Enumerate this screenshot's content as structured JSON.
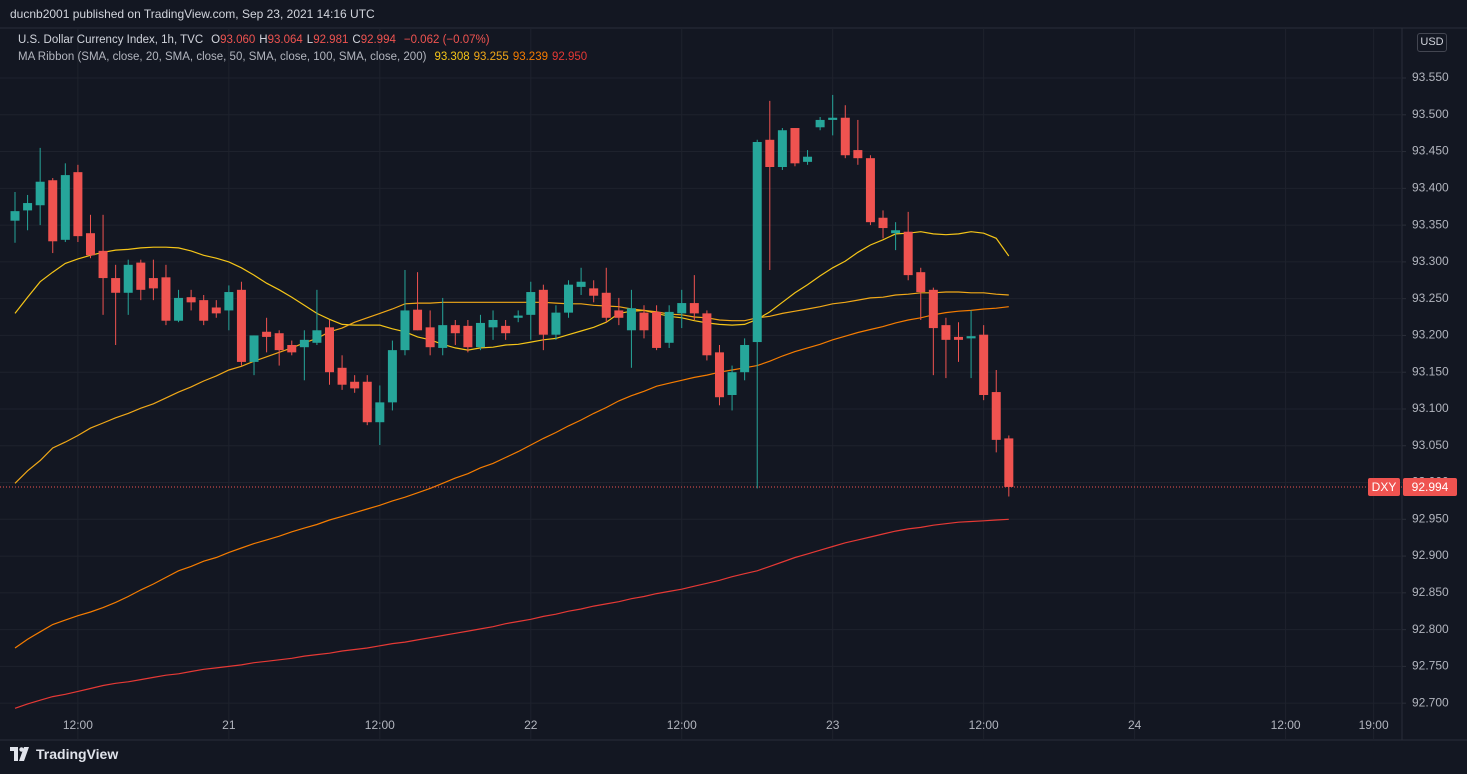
{
  "header": {
    "text": "ducnb2001 published on TradingView.com, Sep 23, 2021 14:16 UTC"
  },
  "footer": {
    "brand": "TradingView"
  },
  "chart_data": {
    "type": "candlestick",
    "title": "U.S. Dollar Currency Index, 1h, TVC",
    "ohlc_legend": [
      {
        "key": "O",
        "value": "93.060"
      },
      {
        "key": "H",
        "value": "93.064"
      },
      {
        "key": "L",
        "value": "92.981"
      },
      {
        "key": "C",
        "value": "92.994"
      }
    ],
    "change": "−0.062 (−0.07%)",
    "currency": "USD",
    "symbol": "DXY",
    "last_label": "92.994",
    "up_color": "#26a69a",
    "down_color": "#ef5350",
    "grid": true,
    "ylim": [
      92.688,
      93.618
    ],
    "yticks": [
      {
        "value": 92.7,
        "label": "92.700"
      },
      {
        "value": 92.75,
        "label": "92.750"
      },
      {
        "value": 92.8,
        "label": "92.800"
      },
      {
        "value": 92.85,
        "label": "92.850"
      },
      {
        "value": 92.9,
        "label": "92.900"
      },
      {
        "value": 92.95,
        "label": "92.950"
      },
      {
        "value": 93.0,
        "label": "93.000"
      },
      {
        "value": 93.05,
        "label": "93.050"
      },
      {
        "value": 93.1,
        "label": "93.100"
      },
      {
        "value": 93.15,
        "label": "93.150"
      },
      {
        "value": 93.2,
        "label": "93.200"
      },
      {
        "value": 93.25,
        "label": "93.250"
      },
      {
        "value": 93.3,
        "label": "93.300"
      },
      {
        "value": 93.35,
        "label": "93.350"
      },
      {
        "value": 93.4,
        "label": "93.400"
      },
      {
        "value": 93.45,
        "label": "93.450"
      },
      {
        "value": 93.5,
        "label": "93.500"
      },
      {
        "value": 93.55,
        "label": "93.550"
      }
    ],
    "x_tick_labels": [
      "12:00",
      "21",
      "12:00",
      "22",
      "12:00",
      "23",
      "12:00",
      "24",
      "12:00",
      "19:00"
    ],
    "open": [
      93.356,
      93.37,
      93.377,
      93.411,
      93.33,
      93.422,
      93.339,
      93.315,
      93.278,
      93.258,
      93.299,
      93.278,
      93.279,
      93.22,
      93.252,
      93.248,
      93.238,
      93.234,
      93.262,
      93.164,
      93.205,
      93.203,
      93.187,
      93.184,
      93.19,
      93.211,
      93.156,
      93.137,
      93.137,
      93.082,
      93.109,
      93.18,
      93.235,
      93.211,
      93.183,
      93.214,
      93.213,
      93.184,
      93.211,
      93.213,
      93.224,
      93.228,
      93.262,
      93.201,
      93.231,
      93.266,
      93.264,
      93.258,
      93.234,
      93.207,
      93.231,
      93.232,
      93.19,
      93.23,
      93.244,
      93.23,
      93.177,
      93.119,
      93.15,
      93.191,
      93.466,
      93.429,
      93.482,
      93.436,
      93.483,
      93.493,
      93.496,
      93.452,
      93.441,
      93.36,
      93.339,
      93.341,
      93.286,
      93.262,
      93.214,
      93.198,
      93.196,
      93.201,
      93.123,
      93.06
    ],
    "high": [
      93.395,
      93.391,
      93.455,
      93.414,
      93.434,
      93.432,
      93.364,
      93.364,
      93.296,
      93.303,
      93.303,
      93.303,
      93.296,
      93.262,
      93.262,
      93.255,
      93.248,
      93.268,
      93.273,
      93.2,
      93.224,
      93.207,
      93.193,
      93.207,
      93.262,
      93.221,
      93.173,
      93.146,
      93.146,
      93.132,
      93.193,
      93.289,
      93.286,
      93.234,
      93.251,
      93.221,
      93.221,
      93.228,
      93.234,
      93.221,
      93.234,
      93.273,
      93.269,
      93.241,
      93.275,
      93.292,
      93.275,
      93.292,
      93.251,
      93.262,
      93.241,
      93.241,
      93.241,
      93.262,
      93.282,
      93.234,
      93.187,
      93.159,
      93.196,
      93.466,
      93.519,
      93.482,
      93.482,
      93.452,
      93.497,
      93.527,
      93.513,
      93.493,
      93.445,
      93.37,
      93.354,
      93.368,
      93.292,
      93.265,
      93.224,
      93.218,
      93.234,
      93.214,
      93.153,
      93.064
    ],
    "low": [
      93.326,
      93.343,
      93.35,
      93.312,
      93.327,
      93.327,
      93.305,
      93.228,
      93.187,
      93.228,
      93.248,
      93.248,
      93.214,
      93.218,
      93.234,
      93.214,
      93.224,
      93.207,
      93.159,
      93.146,
      93.177,
      93.159,
      93.173,
      93.139,
      93.187,
      93.133,
      93.126,
      93.122,
      93.078,
      93.051,
      93.098,
      93.173,
      93.207,
      93.173,
      93.173,
      93.187,
      93.177,
      93.18,
      93.194,
      93.194,
      93.218,
      93.194,
      93.18,
      93.194,
      93.224,
      93.255,
      93.245,
      93.218,
      93.214,
      93.156,
      93.196,
      93.18,
      93.183,
      93.21,
      93.221,
      93.166,
      93.105,
      93.098,
      93.139,
      92.992,
      93.289,
      93.425,
      93.43,
      93.432,
      93.479,
      93.472,
      93.441,
      93.432,
      93.35,
      93.332,
      93.316,
      93.275,
      93.221,
      93.146,
      93.142,
      93.164,
      93.142,
      93.112,
      93.041,
      92.981
    ],
    "close": [
      93.369,
      93.38,
      93.409,
      93.328,
      93.418,
      93.335,
      93.309,
      93.278,
      93.258,
      93.296,
      93.262,
      93.264,
      93.22,
      93.251,
      93.245,
      93.22,
      93.23,
      93.259,
      93.164,
      93.2,
      93.198,
      93.18,
      93.177,
      93.194,
      93.207,
      93.15,
      93.133,
      93.128,
      93.082,
      93.109,
      93.18,
      93.234,
      93.207,
      93.184,
      93.214,
      93.203,
      93.184,
      93.217,
      93.221,
      93.203,
      93.227,
      93.259,
      93.201,
      93.231,
      93.269,
      93.273,
      93.254,
      93.224,
      93.224,
      93.237,
      93.207,
      93.183,
      93.232,
      93.244,
      93.23,
      93.173,
      93.116,
      93.15,
      93.187,
      93.463,
      93.429,
      93.479,
      93.434,
      93.443,
      93.493,
      93.496,
      93.445,
      93.441,
      93.354,
      93.346,
      93.343,
      93.282,
      93.259,
      93.21,
      93.194,
      93.194,
      93.199,
      93.119,
      93.058,
      92.994
    ],
    "ma_ribbon": {
      "label": "MA Ribbon (SMA, close, 20, SMA, close, 50, SMA, close, 100, SMA, close, 200)",
      "series": [
        {
          "color": "#f5c518",
          "value_label": "93.308",
          "values": [
            93.23,
            93.252,
            93.273,
            93.286,
            93.298,
            93.304,
            93.309,
            93.313,
            93.316,
            93.317,
            93.319,
            93.32,
            93.32,
            93.319,
            93.315,
            93.309,
            93.305,
            93.3,
            93.292,
            93.282,
            93.271,
            93.262,
            93.252,
            93.241,
            93.23,
            93.222,
            93.215,
            93.214,
            93.214,
            93.214,
            93.209,
            93.205,
            93.198,
            93.194,
            93.188,
            93.183,
            93.18,
            93.183,
            93.184,
            93.187,
            93.188,
            93.191,
            93.194,
            93.196,
            93.201,
            93.206,
            93.211,
            93.218,
            93.23,
            93.233,
            93.234,
            93.23,
            93.226,
            93.224,
            93.22,
            93.217,
            93.215,
            93.214,
            93.215,
            93.222,
            93.232,
            93.245,
            93.258,
            93.269,
            93.281,
            93.292,
            93.301,
            93.313,
            93.323,
            93.33,
            93.338,
            93.339,
            93.341,
            93.338,
            93.337,
            93.338,
            93.341,
            93.339,
            93.332,
            93.308
          ]
        },
        {
          "color": "#f0a818",
          "value_label": "93.255",
          "values": [
            92.999,
            93.016,
            93.03,
            93.047,
            93.055,
            93.064,
            93.074,
            93.081,
            93.088,
            93.094,
            93.101,
            93.107,
            93.115,
            93.123,
            93.13,
            93.138,
            93.145,
            93.153,
            93.158,
            93.165,
            93.171,
            93.177,
            93.183,
            93.19,
            93.196,
            93.205,
            93.21,
            93.218,
            93.224,
            93.23,
            93.236,
            93.243,
            93.244,
            93.244,
            93.245,
            93.245,
            93.245,
            93.245,
            93.245,
            93.245,
            93.245,
            93.245,
            93.245,
            93.244,
            93.243,
            93.243,
            93.241,
            93.24,
            93.239,
            93.236,
            93.234,
            93.232,
            93.229,
            93.228,
            93.225,
            93.224,
            93.221,
            93.22,
            93.22,
            93.224,
            93.226,
            93.23,
            93.233,
            93.236,
            93.239,
            93.243,
            93.245,
            93.248,
            93.251,
            93.252,
            93.255,
            93.256,
            93.258,
            93.258,
            93.259,
            93.259,
            93.258,
            93.258,
            93.256,
            93.255
          ]
        },
        {
          "color": "#f57c00",
          "value_label": "93.239",
          "values": [
            92.775,
            92.787,
            92.797,
            92.807,
            92.813,
            92.819,
            92.824,
            92.83,
            92.837,
            92.845,
            92.854,
            92.862,
            92.871,
            92.88,
            92.886,
            92.893,
            92.898,
            92.905,
            92.911,
            92.917,
            92.922,
            92.927,
            92.933,
            92.938,
            92.943,
            92.949,
            92.954,
            92.959,
            92.964,
            92.969,
            92.975,
            92.98,
            92.986,
            92.992,
            92.999,
            93.006,
            93.012,
            93.02,
            93.026,
            93.034,
            93.042,
            93.051,
            93.06,
            93.068,
            93.077,
            93.085,
            93.094,
            93.102,
            93.111,
            93.118,
            93.124,
            93.131,
            93.135,
            93.139,
            93.143,
            93.146,
            93.15,
            93.153,
            93.156,
            93.159,
            93.165,
            93.172,
            93.178,
            93.183,
            93.188,
            93.194,
            93.199,
            93.204,
            93.208,
            93.212,
            93.217,
            93.221,
            93.224,
            93.228,
            93.231,
            93.233,
            93.234,
            93.236,
            93.237,
            93.239
          ]
        },
        {
          "color": "#e53935",
          "value_label": "92.950",
          "values": [
            92.693,
            92.699,
            92.704,
            92.709,
            92.712,
            92.716,
            92.72,
            92.724,
            92.727,
            92.729,
            92.732,
            92.735,
            92.738,
            92.74,
            92.743,
            92.746,
            92.748,
            92.75,
            92.752,
            92.755,
            92.757,
            92.759,
            92.761,
            92.764,
            92.766,
            92.768,
            92.771,
            92.773,
            92.775,
            92.778,
            92.781,
            92.783,
            92.786,
            92.789,
            92.792,
            92.795,
            92.798,
            92.801,
            92.804,
            92.808,
            92.811,
            92.814,
            92.818,
            92.821,
            92.825,
            92.828,
            92.832,
            92.835,
            92.838,
            92.842,
            92.845,
            92.849,
            92.852,
            92.855,
            92.859,
            92.863,
            92.867,
            92.872,
            92.876,
            92.88,
            92.886,
            92.892,
            92.898,
            92.903,
            92.908,
            92.913,
            92.918,
            92.922,
            92.926,
            92.93,
            92.934,
            92.937,
            92.939,
            92.942,
            92.944,
            92.946,
            92.947,
            92.948,
            92.949,
            92.95
          ]
        }
      ]
    }
  }
}
